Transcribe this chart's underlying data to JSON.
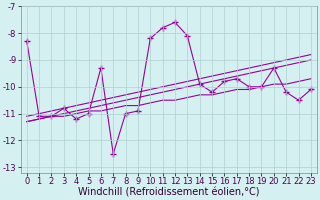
{
  "xlabel": "Windchill (Refroidissement éolien,°C)",
  "x": [
    0,
    1,
    2,
    3,
    4,
    5,
    6,
    7,
    8,
    9,
    10,
    11,
    12,
    13,
    14,
    15,
    16,
    17,
    18,
    19,
    20,
    21,
    22,
    23
  ],
  "y_main": [
    -8.3,
    -11.1,
    -11.1,
    -10.8,
    -11.2,
    -11.0,
    -9.3,
    -12.5,
    -11.0,
    -10.9,
    -8.2,
    -7.8,
    -7.6,
    -8.1,
    -9.9,
    -10.2,
    -9.8,
    -9.7,
    -10.0,
    -10.0,
    -9.3,
    -10.2,
    -10.5,
    -10.1
  ],
  "y_reg1": [
    -11.3,
    -11.2,
    -11.1,
    -11.1,
    -11.0,
    -10.9,
    -10.9,
    -10.8,
    -10.7,
    -10.7,
    -10.6,
    -10.5,
    -10.5,
    -10.4,
    -10.3,
    -10.3,
    -10.2,
    -10.1,
    -10.1,
    -10.0,
    -9.9,
    -9.9,
    -9.8,
    -9.7
  ],
  "y_reg2": [
    -11.1,
    -11.0,
    -10.9,
    -10.8,
    -10.7,
    -10.6,
    -10.5,
    -10.4,
    -10.3,
    -10.2,
    -10.1,
    -10.0,
    -9.9,
    -9.8,
    -9.7,
    -9.6,
    -9.5,
    -9.4,
    -9.3,
    -9.2,
    -9.1,
    -9.0,
    -8.9,
    -8.8
  ],
  "y_reg3": [
    -11.3,
    -11.2,
    -11.1,
    -11.0,
    -10.9,
    -10.8,
    -10.7,
    -10.6,
    -10.5,
    -10.4,
    -10.3,
    -10.2,
    -10.1,
    -10.0,
    -9.9,
    -9.8,
    -9.7,
    -9.6,
    -9.5,
    -9.4,
    -9.3,
    -9.2,
    -9.1,
    -9.0
  ],
  "ylim": [
    -13.2,
    -7.0
  ],
  "xlim": [
    -0.5,
    23.5
  ],
  "line_color": "#990099",
  "bg_color": "#d4f0f0",
  "grid_color": "#b0d0d0",
  "marker": "+",
  "marker_size": 4,
  "tick_fontsize": 6,
  "xlabel_fontsize": 7
}
